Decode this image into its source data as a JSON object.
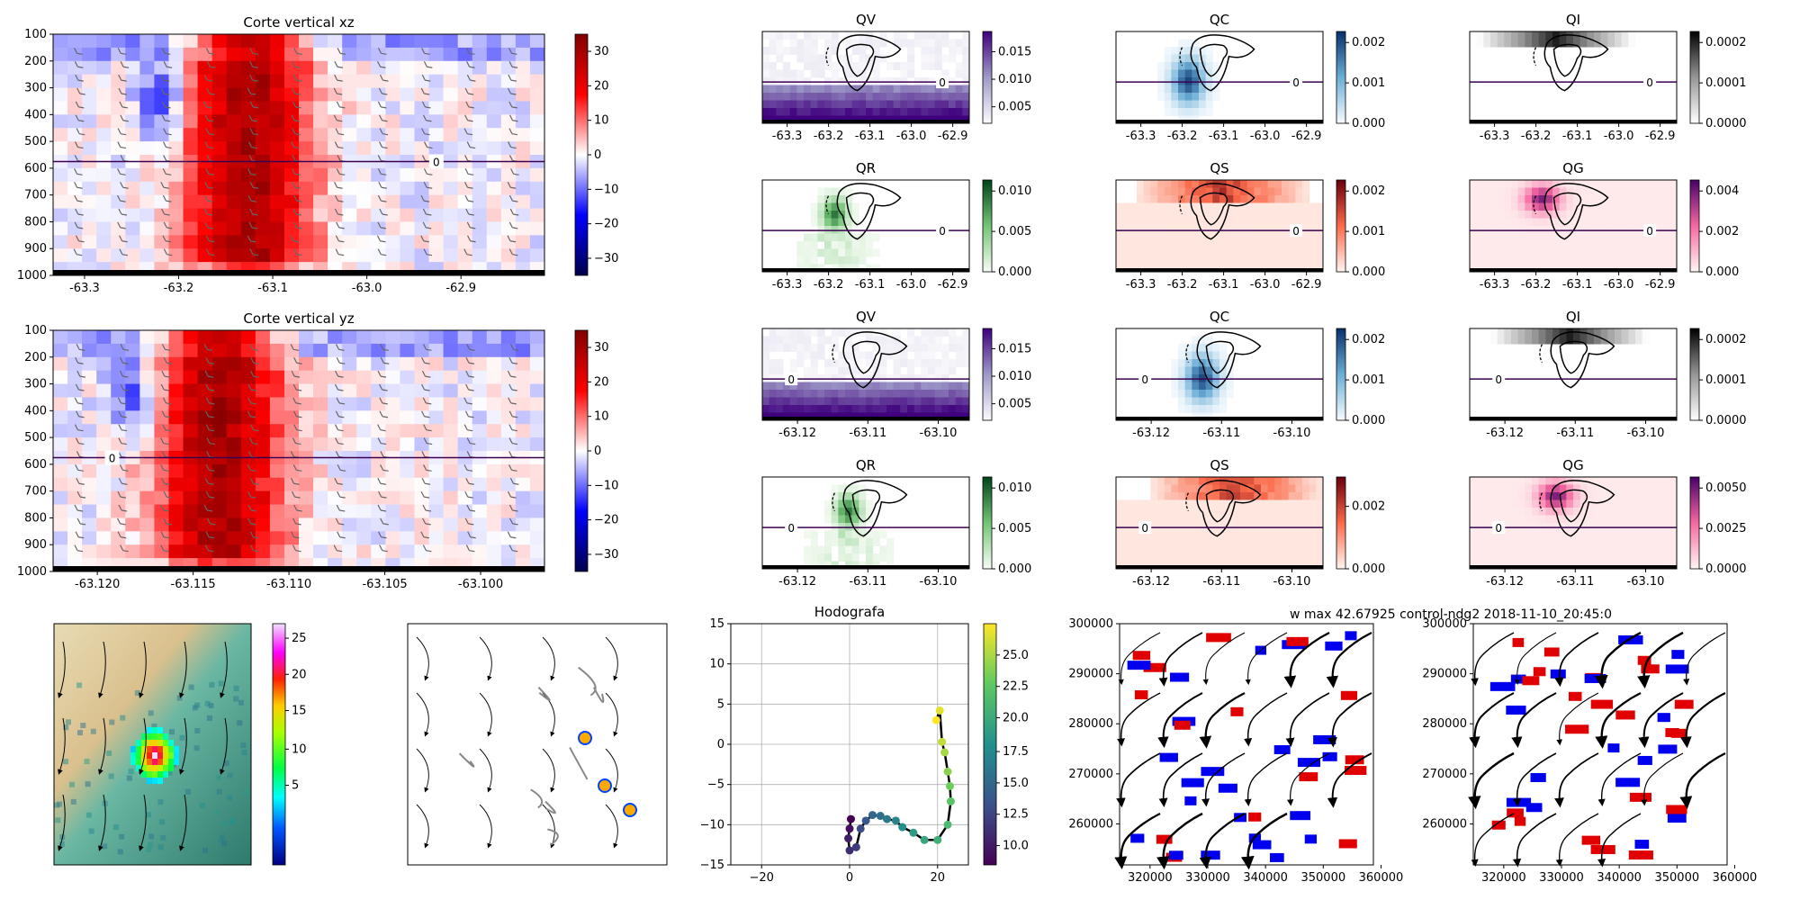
{
  "figure": {
    "suptitle": "w max 42.67925 control-ndg2 2018-11-10_20:45:0"
  },
  "chart_data": [
    {
      "id": "xz",
      "type": "heatmap",
      "title": "Corte vertical xz",
      "xticks": [
        "-63.3",
        "-63.2",
        "-63.1",
        "-63.0",
        "-62.9"
      ],
      "xlim": [
        -63.37,
        -62.87
      ],
      "yticks": [
        "100",
        "200",
        "300",
        "400",
        "500",
        "600",
        "700",
        "800",
        "900",
        "1000"
      ],
      "ylim": [
        1000,
        100
      ],
      "contour_label": "0",
      "contour_level_hpa": 575,
      "colorbar_ticks": [
        "30",
        "20",
        "10",
        "0",
        "−10",
        "−20",
        "−30"
      ],
      "colorbar_range": [
        -35,
        35
      ],
      "colormap": "seismic"
    },
    {
      "id": "yz",
      "type": "heatmap",
      "title": "Corte vertical yz",
      "xticks": [
        "-63.120",
        "-63.115",
        "-63.110",
        "-63.105",
        "-63.100"
      ],
      "xlim": [
        -63.1235,
        -63.097
      ],
      "yticks": [
        "100",
        "200",
        "300",
        "400",
        "500",
        "600",
        "700",
        "800",
        "900",
        "1000"
      ],
      "ylim": [
        1000,
        100
      ],
      "contour_label": "0",
      "contour_level_hpa": 575,
      "colorbar_ticks": [
        "30",
        "20",
        "10",
        "0",
        "−10",
        "−20",
        "−30"
      ],
      "colorbar_range": [
        -35,
        35
      ],
      "colormap": "seismic"
    },
    {
      "id": "qv1",
      "type": "heatmap",
      "title": "QV",
      "xticks": [
        "-63.3",
        "-63.2",
        "-63.1",
        "-63.0",
        "-62.9"
      ],
      "colorbar_ticks": [
        "0.015",
        "0.010",
        "0.005"
      ],
      "colormap": "Purples",
      "contour_label": "0"
    },
    {
      "id": "qc1",
      "type": "heatmap",
      "title": "QC",
      "xticks": [
        "-63.3",
        "-63.2",
        "-63.1",
        "-63.0",
        "-62.9"
      ],
      "colorbar_ticks": [
        "0.002",
        "0.001",
        "0.000"
      ],
      "colormap": "Blues",
      "contour_label": "0"
    },
    {
      "id": "qi1",
      "type": "heatmap",
      "title": "QI",
      "xticks": [
        "-63.3",
        "-63.2",
        "-63.1",
        "-63.0",
        "-62.9"
      ],
      "colorbar_ticks": [
        "0.0002",
        "0.0001",
        "0.0000"
      ],
      "colormap": "Greys",
      "contour_label": "0"
    },
    {
      "id": "qr1",
      "type": "heatmap",
      "title": "QR",
      "xticks": [
        "-63.3",
        "-63.2",
        "-63.1",
        "-63.0",
        "-62.9"
      ],
      "colorbar_ticks": [
        "0.010",
        "0.005",
        "0.000"
      ],
      "colormap": "Greens",
      "contour_label": "0"
    },
    {
      "id": "qs1",
      "type": "heatmap",
      "title": "QS",
      "xticks": [
        "-63.3",
        "-63.2",
        "-63.1",
        "-63.0",
        "-62.9"
      ],
      "colorbar_ticks": [
        "0.002",
        "0.001",
        "0.000"
      ],
      "colormap": "Reds",
      "contour_label": "0"
    },
    {
      "id": "qg1",
      "type": "heatmap",
      "title": "QG",
      "xticks": [
        "-63.3",
        "-63.2",
        "-63.1",
        "-63.0",
        "-62.9"
      ],
      "colorbar_ticks": [
        "0.004",
        "0.002",
        "0.000"
      ],
      "colormap": "RdPu",
      "contour_label": "0"
    },
    {
      "id": "qv2",
      "type": "heatmap",
      "title": "QV",
      "xticks": [
        "-63.12",
        "-63.11",
        "-63.10"
      ],
      "colorbar_ticks": [
        "0.015",
        "0.010",
        "0.005"
      ],
      "colormap": "Purples",
      "contour_label": "0"
    },
    {
      "id": "qc2",
      "type": "heatmap",
      "title": "QC",
      "xticks": [
        "-63.12",
        "-63.11",
        "-63.10"
      ],
      "colorbar_ticks": [
        "0.002",
        "0.001",
        "0.000"
      ],
      "colormap": "Blues",
      "contour_label": "0"
    },
    {
      "id": "qi2",
      "type": "heatmap",
      "title": "QI",
      "xticks": [
        "-63.12",
        "-63.11",
        "-63.10"
      ],
      "colorbar_ticks": [
        "0.0002",
        "0.0001",
        "0.0000"
      ],
      "colormap": "Greys",
      "contour_label": "0"
    },
    {
      "id": "qr2",
      "type": "heatmap",
      "title": "QR",
      "xticks": [
        "-63.12",
        "-63.11",
        "-63.10"
      ],
      "colorbar_ticks": [
        "0.010",
        "0.005",
        "0.000"
      ],
      "colormap": "Greens",
      "contour_label": "0"
    },
    {
      "id": "qs2",
      "type": "heatmap",
      "title": "QS",
      "xticks": [
        "-63.12",
        "-63.11",
        "-63.10"
      ],
      "colorbar_ticks": [
        "0.002",
        "0.000"
      ],
      "colormap": "Reds",
      "contour_label": "0"
    },
    {
      "id": "qg2",
      "type": "heatmap",
      "title": "QG",
      "xticks": [
        "-63.12",
        "-63.11",
        "-63.10"
      ],
      "colorbar_ticks": [
        "0.0050",
        "0.0025",
        "0.0000"
      ],
      "colormap": "RdPu",
      "contour_label": "0"
    },
    {
      "id": "map1",
      "type": "heatmap",
      "colorbar_ticks": [
        "25",
        "20",
        "15",
        "10",
        "5"
      ],
      "colormap": "gist_ncar"
    },
    {
      "id": "map2",
      "type": "heatmap"
    },
    {
      "id": "hodo",
      "type": "line",
      "title": "Hodografa",
      "xticks": [
        "−20",
        "0",
        "20"
      ],
      "xlim": [
        -27,
        27
      ],
      "yticks": [
        "15",
        "10",
        "5",
        "0",
        "−5",
        "−10",
        "−15"
      ],
      "ylim": [
        -15,
        15
      ],
      "grid": true,
      "u": [
        0.3,
        0.0,
        -0.3,
        0.0,
        1.5,
        2.5,
        3.7,
        5.2,
        7.0,
        8.5,
        10.5,
        12.0,
        14.5,
        17.0,
        20.0,
        22.3,
        23.0,
        22.8,
        22.3,
        21.6,
        21.0,
        20.5,
        19.7
      ],
      "v": [
        -9.3,
        -10.5,
        -11.7,
        -13.2,
        -12.8,
        -10.5,
        -9.5,
        -8.8,
        -8.9,
        -9.3,
        -9.5,
        -10.3,
        -11.0,
        -11.9,
        -11.9,
        -10.0,
        -7.1,
        -5.2,
        -3.4,
        -1.0,
        0.3,
        4.2,
        3.0
      ],
      "colorbar_ticks": [
        "25.0",
        "22.5",
        "20.0",
        "17.5",
        "15.0",
        "12.5",
        "10.0"
      ],
      "colorbar_range": [
        8.5,
        27.5
      ],
      "colormap": "viridis"
    },
    {
      "id": "stream1",
      "type": "heatmap",
      "xticks": [
        "320000",
        "330000",
        "340000",
        "350000",
        "360000"
      ],
      "yticks": [
        "300000",
        "290000",
        "280000",
        "270000",
        "260000"
      ]
    },
    {
      "id": "stream2",
      "type": "heatmap",
      "xticks": [
        "320000",
        "330000",
        "340000",
        "350000",
        "360000"
      ],
      "yticks": [
        "300000",
        "290000",
        "280000",
        "270000",
        "260000"
      ]
    }
  ]
}
